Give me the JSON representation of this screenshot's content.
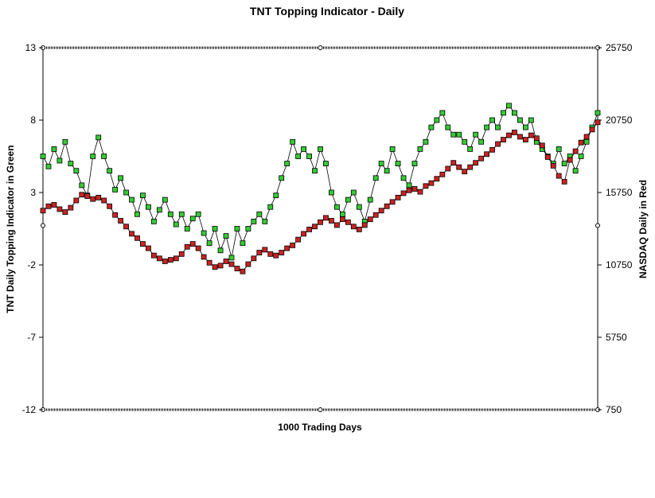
{
  "chart_data": {
    "type": "line",
    "title": "TNT Topping Indicator - Daily",
    "xlabel": "1000 Trading Days",
    "ylabel_left": "TNT Daily Topping Indicator in Green",
    "ylabel_right": "NASDAQ Daily in Red",
    "x_range": [
      0,
      1000
    ],
    "y_left": {
      "range": [
        -12,
        13
      ],
      "ticks": [
        "13",
        "8",
        "3",
        "-2",
        "-7",
        "-12"
      ],
      "tick_values": [
        13,
        8,
        3,
        -2,
        -7,
        -12
      ]
    },
    "y_right": {
      "range": [
        750,
        25750
      ],
      "ticks": [
        "25750",
        "20750",
        "15750",
        "10750",
        "5750",
        "750"
      ],
      "tick_values": [
        25750,
        20750,
        15750,
        10750,
        5750,
        750
      ]
    },
    "grid": false,
    "legend": "none",
    "series": [
      {
        "axis": "left",
        "color": "#33cc33",
        "marker": "square",
        "x": [
          0,
          10,
          20,
          30,
          40,
          50,
          60,
          70,
          80,
          90,
          100,
          110,
          120,
          130,
          140,
          150,
          160,
          170,
          180,
          190,
          200,
          210,
          220,
          230,
          240,
          250,
          260,
          270,
          280,
          290,
          300,
          310,
          320,
          330,
          340,
          350,
          360,
          370,
          380,
          390,
          400,
          410,
          420,
          430,
          440,
          450,
          460,
          470,
          480,
          490,
          500,
          510,
          520,
          530,
          540,
          550,
          560,
          570,
          580,
          590,
          600,
          610,
          620,
          630,
          640,
          650,
          660,
          670,
          680,
          690,
          700,
          710,
          720,
          730,
          740,
          750,
          760,
          770,
          780,
          790,
          800,
          810,
          820,
          830,
          840,
          850,
          860,
          870,
          880,
          890,
          900,
          910,
          920,
          930,
          940,
          950,
          960,
          970,
          980,
          990,
          1000
        ],
        "values": [
          5.5,
          4.8,
          6.0,
          5.2,
          6.5,
          5.0,
          4.5,
          3.5,
          2.8,
          5.5,
          6.8,
          5.5,
          4.5,
          3.2,
          4.0,
          3.0,
          2.5,
          1.5,
          2.8,
          2.0,
          1.0,
          1.8,
          2.5,
          1.5,
          0.8,
          1.5,
          0.5,
          1.2,
          1.5,
          0.2,
          -0.5,
          0.5,
          -1.0,
          0.0,
          -1.5,
          0.5,
          -0.5,
          0.5,
          1.0,
          1.5,
          1.0,
          2.0,
          2.8,
          4.0,
          5.0,
          6.5,
          5.5,
          6.0,
          5.5,
          4.5,
          6.0,
          5.0,
          3.0,
          2.0,
          1.5,
          2.5,
          3.0,
          2.0,
          1.0,
          2.5,
          4.0,
          5.0,
          4.5,
          6.0,
          5.0,
          4.0,
          3.5,
          5.0,
          6.0,
          6.5,
          7.5,
          8.0,
          8.5,
          7.5,
          7.0,
          7.0,
          6.5,
          6.0,
          7.0,
          6.5,
          7.5,
          8.0,
          7.5,
          8.5,
          9.0,
          8.5,
          8.0,
          7.5,
          8.0,
          6.5,
          6.0,
          5.5,
          5.0,
          6.0,
          5.0,
          5.5,
          4.5,
          5.5,
          6.5,
          7.5,
          8.5
        ]
      },
      {
        "axis": "right",
        "color": "#cc2222",
        "marker": "square",
        "x": [
          0,
          10,
          20,
          30,
          40,
          50,
          60,
          70,
          80,
          90,
          100,
          110,
          120,
          130,
          140,
          150,
          160,
          170,
          180,
          190,
          200,
          210,
          220,
          230,
          240,
          250,
          260,
          270,
          280,
          290,
          300,
          310,
          320,
          330,
          340,
          350,
          360,
          370,
          380,
          390,
          400,
          410,
          420,
          430,
          440,
          450,
          460,
          470,
          480,
          490,
          500,
          510,
          520,
          530,
          540,
          550,
          560,
          570,
          580,
          590,
          600,
          610,
          620,
          630,
          640,
          650,
          660,
          670,
          680,
          690,
          700,
          710,
          720,
          730,
          740,
          750,
          760,
          770,
          780,
          790,
          800,
          810,
          820,
          830,
          840,
          850,
          860,
          870,
          880,
          890,
          900,
          910,
          920,
          930,
          940,
          950,
          960,
          970,
          980,
          990,
          1000
        ],
        "values": [
          14500,
          14800,
          14900,
          14600,
          14400,
          14700,
          15200,
          15600,
          15500,
          15300,
          15400,
          15200,
          14800,
          14200,
          13800,
          13400,
          12900,
          12600,
          12200,
          11900,
          11400,
          11200,
          11000,
          11100,
          11200,
          11500,
          12000,
          12200,
          11900,
          11300,
          10900,
          10600,
          10700,
          11000,
          10800,
          10500,
          10300,
          10800,
          11200,
          11600,
          11800,
          11500,
          11400,
          11600,
          11900,
          12100,
          12500,
          12900,
          13200,
          13400,
          13700,
          14000,
          13800,
          13500,
          13900,
          13700,
          13400,
          13200,
          13500,
          13900,
          14200,
          14500,
          14800,
          15100,
          15400,
          15700,
          15900,
          16000,
          15800,
          16200,
          16400,
          16700,
          17000,
          17400,
          17800,
          17500,
          17200,
          17500,
          17800,
          18100,
          18400,
          18700,
          19100,
          19400,
          19700,
          19900,
          19600,
          19400,
          19700,
          19500,
          19000,
          18200,
          17600,
          16900,
          16500,
          18000,
          18600,
          19200,
          19600,
          20100,
          20600
        ]
      }
    ]
  }
}
